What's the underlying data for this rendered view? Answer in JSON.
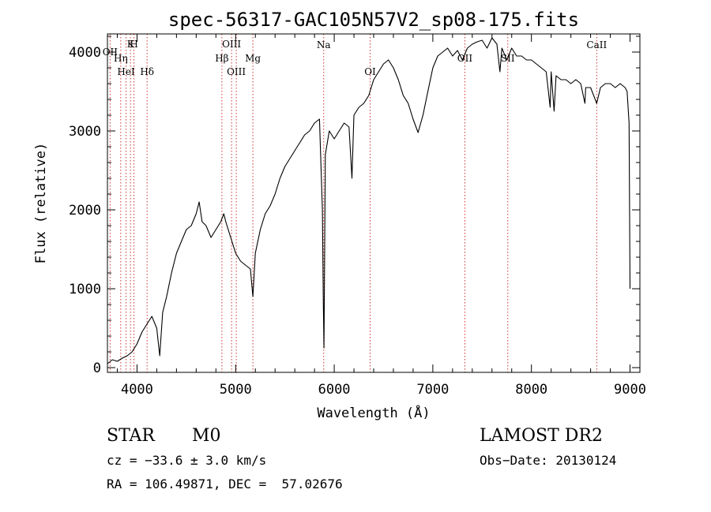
{
  "chart_data": {
    "type": "line",
    "title": "spec-56317-GAC105N57V2_sp08-175.fits",
    "xlabel": "Wavelength (Å)",
    "ylabel": "Flux (relative)",
    "xlim": [
      3700,
      9100
    ],
    "ylim": [
      -60,
      4230
    ],
    "xticks": [
      4000,
      5000,
      6000,
      7000,
      8000,
      9000
    ],
    "xtick_labels": [
      "4000",
      "5000",
      "6000",
      "7000",
      "8000",
      "9000"
    ],
    "yticks": [
      0,
      1000,
      2000,
      3000,
      4000
    ],
    "ytick_labels": [
      "0",
      "1000",
      "2000",
      "3000",
      "4000"
    ],
    "grid": false,
    "series": [
      {
        "x": [
          3700,
          3750,
          3800,
          3850,
          3900,
          3950,
          4000,
          4050,
          4100,
          4150,
          4200,
          4230,
          4260,
          4300,
          4350,
          4400,
          4450,
          4500,
          4550,
          4600,
          4630,
          4660,
          4700,
          4750,
          4800,
          4850,
          4880,
          4900,
          4950,
          5000,
          5050,
          5100,
          5150,
          5175,
          5200,
          5250,
          5300,
          5350,
          5400,
          5450,
          5500,
          5550,
          5600,
          5650,
          5700,
          5750,
          5800,
          5850,
          5880,
          5890,
          5896,
          5910,
          5950,
          6000,
          6050,
          6100,
          6150,
          6180,
          6200,
          6250,
          6300,
          6350,
          6400,
          6450,
          6500,
          6550,
          6600,
          6650,
          6700,
          6750,
          6800,
          6850,
          6900,
          6950,
          7000,
          7050,
          7100,
          7150,
          7200,
          7250,
          7300,
          7350,
          7400,
          7450,
          7500,
          7550,
          7600,
          7650,
          7680,
          7700,
          7750,
          7800,
          7850,
          7900,
          7950,
          8000,
          8050,
          8100,
          8150,
          8190,
          8200,
          8230,
          8250,
          8300,
          8350,
          8400,
          8450,
          8500,
          8542,
          8550,
          8600,
          8662,
          8700,
          8750,
          8800,
          8850,
          8900,
          8950,
          8970,
          8990,
          9000
        ],
        "y": [
          50,
          100,
          80,
          120,
          150,
          200,
          300,
          450,
          550,
          650,
          500,
          150,
          700,
          900,
          1200,
          1450,
          1600,
          1750,
          1800,
          1950,
          2100,
          1850,
          1800,
          1650,
          1750,
          1850,
          1950,
          1850,
          1650,
          1450,
          1350,
          1300,
          1250,
          900,
          1450,
          1750,
          1950,
          2050,
          2200,
          2400,
          2550,
          2650,
          2750,
          2850,
          2950,
          3000,
          3100,
          3150,
          2000,
          800,
          250,
          2700,
          3000,
          2900,
          3000,
          3100,
          3050,
          2400,
          3200,
          3300,
          3350,
          3450,
          3650,
          3750,
          3850,
          3900,
          3800,
          3650,
          3450,
          3350,
          3150,
          2980,
          3200,
          3500,
          3800,
          3950,
          4000,
          4050,
          3950,
          4020,
          3900,
          4050,
          4100,
          4130,
          4150,
          4050,
          4180,
          4100,
          3750,
          4050,
          3900,
          4050,
          3950,
          3950,
          3900,
          3900,
          3850,
          3800,
          3750,
          3300,
          3750,
          3250,
          3700,
          3650,
          3650,
          3600,
          3650,
          3600,
          3350,
          3550,
          3550,
          3350,
          3550,
          3600,
          3600,
          3550,
          3600,
          3550,
          3500,
          3100,
          1000
        ]
      }
    ],
    "lines": [
      {
        "label": "OII",
        "x": 3727
      },
      {
        "label": "Hη",
        "x": 3835
      },
      {
        "label": "HeI",
        "x": 3889
      },
      {
        "label": "K",
        "x": 3934
      },
      {
        "label": "H",
        "x": 3969
      },
      {
        "label": "Hδ",
        "x": 4102
      },
      {
        "label": "Hβ",
        "x": 4861
      },
      {
        "label": "OIII",
        "x": 4959
      },
      {
        "label": "OIII",
        "x": 5007
      },
      {
        "label": "Mg",
        "x": 5175
      },
      {
        "label": "Na",
        "x": 5893
      },
      {
        "label": "OI",
        "x": 6364
      },
      {
        "label": "OII",
        "x": 7325
      },
      {
        "label": "SII",
        "x": 7760
      },
      {
        "label": "CaII",
        "x": 8662
      }
    ]
  },
  "info": {
    "class": "STAR",
    "subclass": "M0",
    "survey": "LAMOST DR2",
    "cz": "cz = −33.6 ± 3.0 km/s",
    "obs_date": "Obs−Date: 20130124",
    "coords": "RA = 106.49871, DEC =  57.02676"
  },
  "colors": {
    "spectrum": "#000000",
    "line_markers": "#cc3333"
  }
}
